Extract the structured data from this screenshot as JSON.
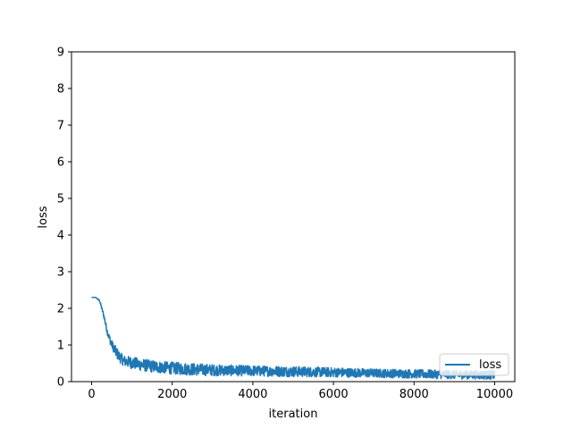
{
  "chart_data": {
    "type": "line",
    "title": "",
    "xlabel": "iteration",
    "ylabel": "loss",
    "xlim": [
      -500,
      10500
    ],
    "ylim": [
      0,
      9
    ],
    "x_ticks": [
      0,
      2000,
      4000,
      6000,
      8000,
      10000
    ],
    "x_tick_labels": [
      "0",
      "2000",
      "4000",
      "6000",
      "8000",
      "10000"
    ],
    "y_ticks": [
      0,
      1,
      2,
      3,
      4,
      5,
      6,
      7,
      8,
      9
    ],
    "y_tick_labels": [
      "0",
      "1",
      "2",
      "3",
      "4",
      "5",
      "6",
      "7",
      "8",
      "9"
    ],
    "grid": false,
    "legend_position": "lower-right",
    "series": [
      {
        "name": "loss",
        "color": "#1f77b4",
        "x": [
          0,
          100,
          200,
          300,
          400,
          500,
          600,
          700,
          800,
          1000,
          1200,
          1500,
          2000,
          2500,
          3000,
          4000,
          5000,
          6000,
          7000,
          8000,
          9000,
          10000
        ],
        "y": [
          2.3,
          2.3,
          2.2,
          1.8,
          1.3,
          1.0,
          0.8,
          0.65,
          0.55,
          0.5,
          0.45,
          0.4,
          0.35,
          0.32,
          0.3,
          0.28,
          0.26,
          0.24,
          0.22,
          0.2,
          0.18,
          0.17
        ],
        "noise_band": [
          0,
          0,
          0.05,
          0.1,
          0.15,
          0.2,
          0.25,
          0.25,
          0.25,
          0.28,
          0.28,
          0.28,
          0.28,
          0.28,
          0.26,
          0.24,
          0.24,
          0.22,
          0.2,
          0.2,
          0.2,
          0.2
        ]
      }
    ]
  }
}
